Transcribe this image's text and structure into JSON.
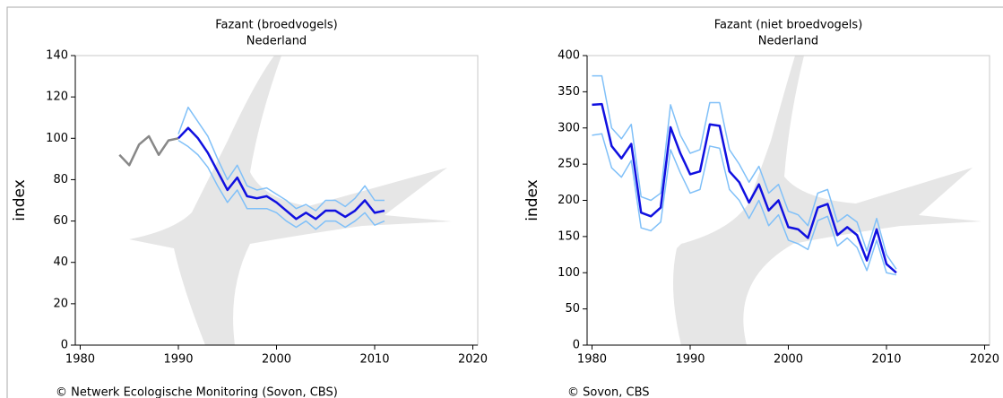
{
  "chart_data": [
    {
      "type": "line",
      "title": "Fazant (broedvogels)",
      "subtitle": "Nederland",
      "ylabel": "index",
      "source": "© Netwerk Ecologische Monitoring (Sovon, CBS)",
      "x": [
        1984,
        1985,
        1986,
        1987,
        1988,
        1989,
        1990,
        1991,
        1992,
        1993,
        1994,
        1995,
        1996,
        1997,
        1998,
        1999,
        2000,
        2001,
        2002,
        2003,
        2004,
        2005,
        2006,
        2007,
        2008,
        2009,
        2010,
        2011
      ],
      "xlim": [
        1979.5,
        2020.5
      ],
      "xticks": [
        1980,
        1990,
        2000,
        2010,
        2020
      ],
      "ylim": [
        0,
        140
      ],
      "yticks": [
        0,
        20,
        40,
        60,
        80,
        100,
        120,
        140
      ],
      "series": [
        {
          "color": "#888888",
          "width": 2.5,
          "values": [
            92,
            87,
            97,
            101,
            92,
            99,
            100,
            null,
            null,
            null,
            null,
            null,
            null,
            null,
            null,
            null,
            null,
            null,
            null,
            null,
            null,
            null,
            null,
            null,
            null,
            null,
            null,
            null
          ]
        },
        {
          "color": "#80c0f8",
          "width": 1.5,
          "values": [
            null,
            null,
            null,
            null,
            null,
            null,
            102,
            115,
            108,
            101,
            90,
            80,
            87,
            77,
            75,
            76,
            73,
            70,
            66,
            68,
            65,
            70,
            70,
            67,
            71,
            77,
            70,
            70
          ]
        },
        {
          "color": "#80c0f8",
          "width": 1.5,
          "values": [
            null,
            null,
            null,
            null,
            null,
            null,
            99,
            96,
            92,
            86,
            77,
            69,
            75,
            66,
            66,
            66,
            64,
            60,
            57,
            60,
            56,
            60,
            60,
            57,
            60,
            64,
            58,
            60
          ]
        },
        {
          "color": "#1010e0",
          "width": 2.5,
          "values": [
            null,
            null,
            null,
            null,
            null,
            null,
            100,
            105,
            100,
            93,
            84,
            75,
            81,
            72,
            71,
            72,
            69,
            65,
            61,
            64,
            61,
            65,
            65,
            62,
            65,
            70,
            64,
            65
          ]
        }
      ]
    },
    {
      "type": "line",
      "title": "Fazant (niet broedvogels)",
      "subtitle": "Nederland",
      "ylabel": "index",
      "source": "© Sovon, CBS",
      "x": [
        1980,
        1981,
        1982,
        1983,
        1984,
        1985,
        1986,
        1987,
        1988,
        1989,
        1990,
        1991,
        1992,
        1993,
        1994,
        1995,
        1996,
        1997,
        1998,
        1999,
        2000,
        2001,
        2002,
        2003,
        2004,
        2005,
        2006,
        2007,
        2008,
        2009,
        2010,
        2011
      ],
      "xlim": [
        1979.5,
        2020.5
      ],
      "xticks": [
        1980,
        1990,
        2000,
        2010,
        2020
      ],
      "ylim": [
        0,
        400
      ],
      "yticks": [
        0,
        50,
        100,
        150,
        200,
        250,
        300,
        350,
        400
      ],
      "series": [
        {
          "color": "#80c0f8",
          "width": 1.5,
          "values": [
            372,
            372,
            300,
            285,
            305,
            205,
            200,
            210,
            332,
            290,
            265,
            270,
            335,
            335,
            270,
            250,
            225,
            247,
            210,
            222,
            185,
            180,
            165,
            210,
            215,
            170,
            180,
            170,
            130,
            175,
            125,
            105
          ]
        },
        {
          "color": "#80c0f8",
          "width": 1.5,
          "values": [
            290,
            292,
            245,
            232,
            255,
            162,
            158,
            170,
            270,
            238,
            210,
            215,
            275,
            272,
            215,
            200,
            175,
            200,
            165,
            180,
            145,
            140,
            132,
            172,
            178,
            137,
            148,
            135,
            103,
            145,
            100,
            97
          ]
        },
        {
          "color": "#1010e0",
          "width": 2.5,
          "values": [
            332,
            333,
            275,
            258,
            278,
            183,
            178,
            190,
            301,
            265,
            236,
            240,
            305,
            303,
            240,
            225,
            197,
            222,
            186,
            200,
            163,
            160,
            148,
            190,
            195,
            152,
            163,
            152,
            117,
            160,
            112,
            100
          ]
        }
      ]
    }
  ]
}
